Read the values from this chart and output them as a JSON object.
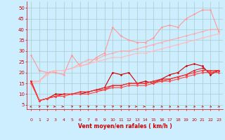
{
  "background_color": "#cceeff",
  "grid_color": "#aacccc",
  "xlabel": "Vent moyen/en rafales ( km/h )",
  "x_ticks": [
    0,
    1,
    2,
    3,
    4,
    5,
    6,
    7,
    8,
    9,
    10,
    11,
    12,
    13,
    14,
    15,
    16,
    17,
    18,
    19,
    20,
    21,
    22,
    23
  ],
  "y_ticks": [
    5,
    10,
    15,
    20,
    25,
    30,
    35,
    40,
    45,
    50
  ],
  "xlim": [
    -0.5,
    23.5
  ],
  "ylim": [
    3,
    53
  ],
  "series": [
    {
      "x": [
        0,
        1,
        2,
        3,
        4,
        5,
        6,
        7,
        8,
        9,
        10,
        11,
        12,
        13,
        14,
        15,
        16,
        17,
        18,
        19,
        20,
        21,
        22,
        23
      ],
      "y": [
        28,
        21,
        20,
        20,
        19,
        28,
        23,
        24,
        27,
        29,
        41,
        37,
        35,
        34,
        34,
        36,
        41,
        42,
        41,
        45,
        47,
        49,
        49,
        39
      ],
      "color": "#ff9999",
      "lw": 0.8,
      "marker": "D",
      "ms": 1.5
    },
    {
      "x": [
        0,
        1,
        2,
        3,
        4,
        5,
        6,
        7,
        8,
        9,
        10,
        11,
        12,
        13,
        14,
        15,
        16,
        17,
        18,
        19,
        20,
        21,
        22,
        23
      ],
      "y": [
        16,
        16,
        20,
        21,
        21,
        22,
        24,
        26,
        26,
        28,
        29,
        30,
        30,
        31,
        32,
        33,
        34,
        35,
        36,
        37,
        38,
        39,
        40,
        40
      ],
      "color": "#ffaaaa",
      "lw": 0.8,
      "marker": "D",
      "ms": 1.5
    },
    {
      "x": [
        0,
        1,
        2,
        3,
        4,
        5,
        6,
        7,
        8,
        9,
        10,
        11,
        12,
        13,
        14,
        15,
        16,
        17,
        18,
        19,
        20,
        21,
        22,
        23
      ],
      "y": [
        15,
        16,
        19,
        21,
        21,
        22,
        23,
        24,
        25,
        26,
        27,
        27,
        28,
        29,
        29,
        30,
        31,
        32,
        33,
        34,
        35,
        36,
        37,
        38
      ],
      "color": "#ffbbbb",
      "lw": 0.8,
      "marker": "D",
      "ms": 1.5
    },
    {
      "x": [
        0,
        1,
        2,
        3,
        4,
        5,
        6,
        7,
        8,
        9,
        10,
        11,
        12,
        13,
        14,
        15,
        16,
        17,
        18,
        19,
        20,
        21,
        22,
        23
      ],
      "y": [
        16,
        7,
        8,
        10,
        10,
        10,
        10,
        11,
        12,
        13,
        20,
        19,
        20,
        15,
        16,
        15,
        17,
        19,
        20,
        23,
        24,
        23,
        19,
        21
      ],
      "color": "#cc0000",
      "lw": 0.8,
      "marker": "D",
      "ms": 1.5
    },
    {
      "x": [
        0,
        1,
        2,
        3,
        4,
        5,
        6,
        7,
        8,
        9,
        10,
        11,
        12,
        13,
        14,
        15,
        16,
        17,
        18,
        19,
        20,
        21,
        22,
        23
      ],
      "y": [
        16,
        7,
        8,
        9,
        10,
        10,
        11,
        11,
        12,
        12,
        14,
        14,
        15,
        15,
        15,
        16,
        17,
        17,
        18,
        19,
        21,
        22,
        20,
        21
      ],
      "color": "#dd2222",
      "lw": 0.8,
      "marker": "D",
      "ms": 1.5
    },
    {
      "x": [
        0,
        1,
        2,
        3,
        4,
        5,
        6,
        7,
        8,
        9,
        10,
        11,
        12,
        13,
        14,
        15,
        16,
        17,
        18,
        19,
        20,
        21,
        22,
        23
      ],
      "y": [
        16,
        7,
        8,
        9,
        10,
        10,
        11,
        11,
        12,
        13,
        14,
        14,
        15,
        15,
        15,
        16,
        16,
        17,
        18,
        19,
        20,
        21,
        21,
        21
      ],
      "color": "#ee3333",
      "lw": 0.8,
      "marker": "D",
      "ms": 1.5
    },
    {
      "x": [
        0,
        1,
        2,
        3,
        4,
        5,
        6,
        7,
        8,
        9,
        10,
        11,
        12,
        13,
        14,
        15,
        16,
        17,
        18,
        19,
        20,
        21,
        22,
        23
      ],
      "y": [
        15,
        7,
        8,
        9,
        9,
        10,
        10,
        10,
        11,
        12,
        13,
        13,
        14,
        14,
        14,
        15,
        16,
        16,
        17,
        18,
        19,
        20,
        20,
        20
      ],
      "color": "#ff4444",
      "lw": 0.8,
      "marker": "D",
      "ms": 1.5
    }
  ],
  "arrow_angles": [
    225,
    45,
    45,
    0,
    0,
    45,
    45,
    45,
    45,
    45,
    45,
    45,
    45,
    0,
    0,
    315,
    315,
    315,
    315,
    315,
    315,
    315,
    315,
    315
  ]
}
